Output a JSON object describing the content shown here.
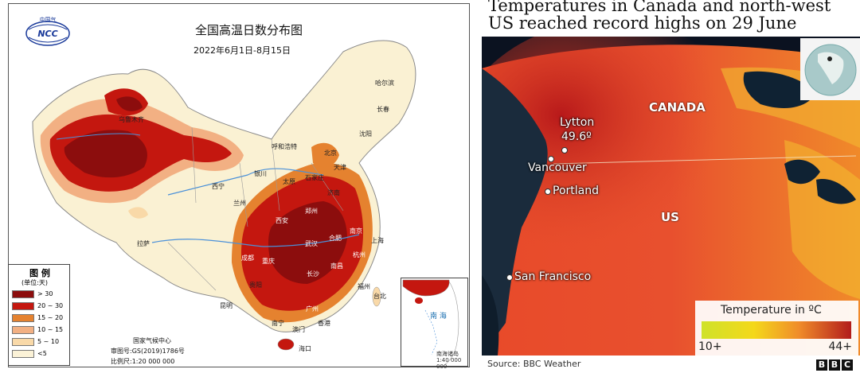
{
  "left_map": {
    "title": "全国高温日数分布图",
    "date_range": "2022年6月1日-8月15日",
    "logo_text": "NCC",
    "logo_top_text": "中国气",
    "legend": {
      "title": "图 例",
      "unit": "(单位:天)",
      "items": [
        {
          "label": "> 30",
          "color": "#8c0d0d"
        },
        {
          "label": "20 ~ 30",
          "color": "#c4170f"
        },
        {
          "label": "15 ~ 20",
          "color": "#e5822f"
        },
        {
          "label": "10 ~ 15",
          "color": "#f2b083"
        },
        {
          "label": "5 ~ 10",
          "color": "#f9d9a8"
        },
        {
          "label": "<5",
          "color": "#fbf2d7"
        }
      ]
    },
    "issuer": "国家气候中心",
    "review_no": "审图号:GS(2019)1786号",
    "scale": "比例尺:1:20 000 000",
    "inset": {
      "label": "南 海",
      "sub_label": "南海诸岛",
      "scale": "1:40 000 000"
    },
    "cities": [
      {
        "name": "哈尔滨"
      },
      {
        "name": "长春"
      },
      {
        "name": "沈阳"
      },
      {
        "name": "乌鲁木齐"
      },
      {
        "name": "呼和浩特"
      },
      {
        "name": "北京"
      },
      {
        "name": "天津"
      },
      {
        "name": "石家庄"
      },
      {
        "name": "太原"
      },
      {
        "name": "银川"
      },
      {
        "name": "济南"
      },
      {
        "name": "西宁"
      },
      {
        "name": "兰州"
      },
      {
        "name": "郑州"
      },
      {
        "name": "西安"
      },
      {
        "name": "合肥"
      },
      {
        "name": "南京"
      },
      {
        "name": "上海"
      },
      {
        "name": "武汉"
      },
      {
        "name": "成都"
      },
      {
        "name": "重庆"
      },
      {
        "name": "杭州"
      },
      {
        "name": "拉萨"
      },
      {
        "name": "长沙"
      },
      {
        "name": "南昌"
      },
      {
        "name": "福州"
      },
      {
        "name": "贵阳"
      },
      {
        "name": "台北"
      },
      {
        "name": "昆明"
      },
      {
        "name": "广州"
      },
      {
        "name": "南宁"
      },
      {
        "name": "香港"
      },
      {
        "name": "澳门"
      },
      {
        "name": "海口"
      }
    ]
  },
  "right_map": {
    "title": "Temperatures in Canada and north-west US reached record highs on 29 June",
    "regions": [
      {
        "name": "CANADA"
      },
      {
        "name": "US"
      }
    ],
    "places": [
      {
        "name": "Lytton"
      },
      {
        "name": "Vancouver"
      },
      {
        "name": "Portland"
      },
      {
        "name": "San Francisco"
      }
    ],
    "lytton_temp": "49.6º",
    "legend": {
      "title": "Temperature in ºC",
      "min": "10+",
      "max": "44+"
    },
    "source": "Source: BBC Weather",
    "logo": [
      "B",
      "B",
      "C"
    ]
  }
}
